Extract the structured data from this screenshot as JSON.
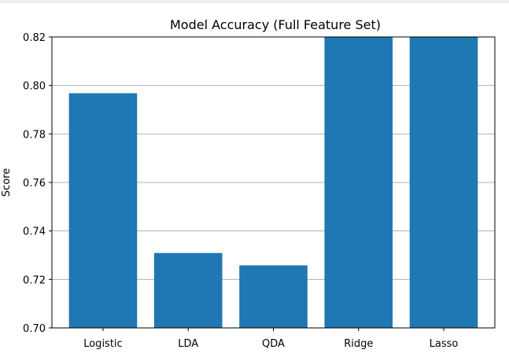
{
  "chart_data": {
    "type": "bar",
    "title": "Model Accuracy (Full Feature Set)",
    "xlabel": "",
    "ylabel": "Score",
    "categories": [
      "Logistic",
      "LDA",
      "QDA",
      "Ridge",
      "Lasso"
    ],
    "values": [
      0.7968,
      0.7309,
      0.7258,
      0.82,
      0.82
    ],
    "ylim": [
      0.7,
      0.82
    ],
    "yticks": [
      0.7,
      0.72,
      0.74,
      0.76,
      0.78,
      0.8,
      0.82
    ],
    "ytick_labels": [
      "0.70",
      "0.72",
      "0.74",
      "0.76",
      "0.78",
      "0.80",
      "0.82"
    ],
    "bar_color": "#1f77b4",
    "grid": "y",
    "legend": "none"
  }
}
